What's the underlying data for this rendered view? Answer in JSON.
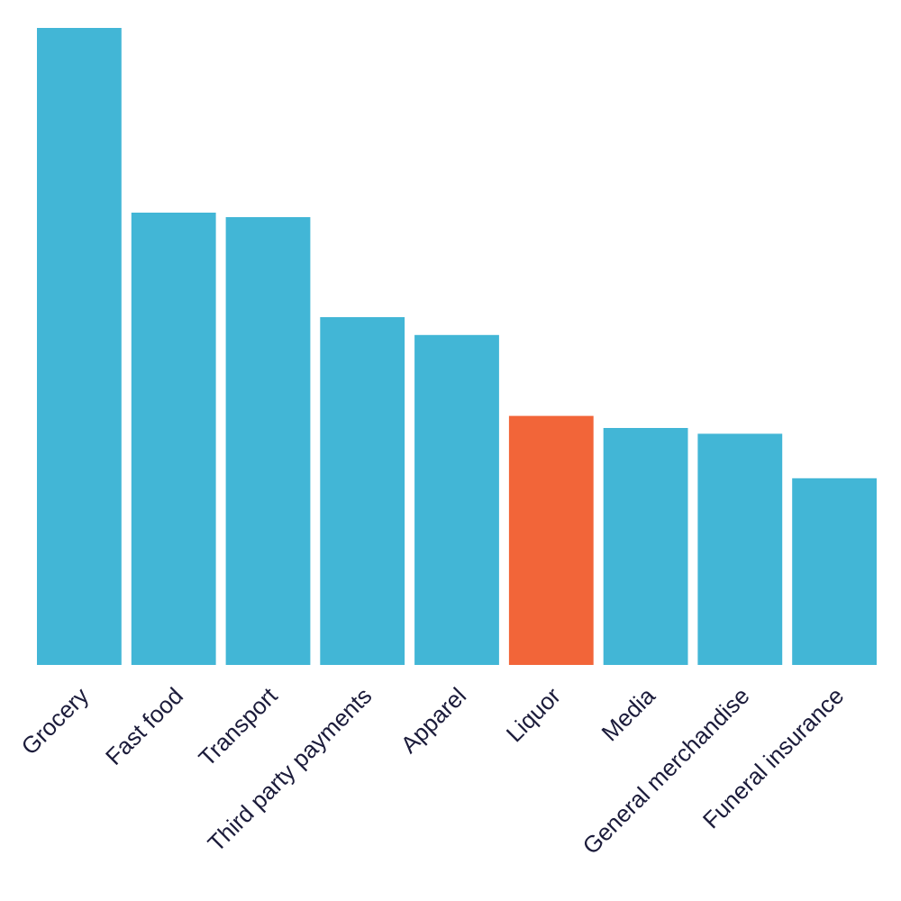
{
  "chart_data": {
    "type": "bar",
    "title": "",
    "xlabel": "",
    "ylabel": "",
    "grid": false,
    "legend": "none",
    "ylim": [
      0,
      100
    ],
    "categories": [
      "Grocery",
      "Fast food",
      "Transport",
      "Third party payments",
      "Apparel",
      "Liquor",
      "Media",
      "General merchandise",
      "Funeral insurance"
    ],
    "values": [
      100,
      71,
      70.3,
      54.6,
      51.8,
      39.1,
      37.2,
      36.3,
      29.3
    ],
    "highlight_index": 5,
    "colors": {
      "bar": "#42b6d6",
      "highlight": "#f26539",
      "label": "#1b1b3a"
    }
  }
}
